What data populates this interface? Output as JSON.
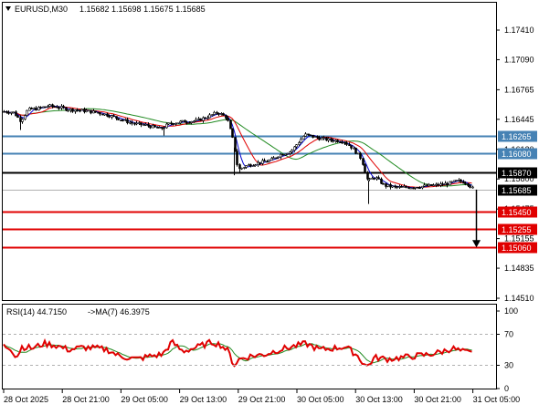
{
  "header": {
    "symbol_label": "EURUSD,M30",
    "ohlc": "1.15682 1.15698 1.15675 1.15685"
  },
  "price_axis": {
    "ticks": [
      "1.17410",
      "1.17090",
      "1.16765",
      "1.16445",
      "1.16120",
      "1.15800",
      "1.15475",
      "1.15155",
      "1.14835",
      "1.14510"
    ]
  },
  "levels": [
    {
      "label": "1.16265",
      "kind": "resistance",
      "color": "#4682B4"
    },
    {
      "label": "1.16080",
      "kind": "resistance",
      "color": "#4682B4"
    },
    {
      "label": "1.15870",
      "kind": "pivot",
      "color": "#000000"
    },
    {
      "label": "1.15450",
      "kind": "support",
      "color": "#E00000"
    },
    {
      "label": "1.15255",
      "kind": "support",
      "color": "#E00000"
    },
    {
      "label": "1.15060",
      "kind": "support",
      "color": "#E00000"
    }
  ],
  "current_price": {
    "label": "1.15685",
    "color": "#000000"
  },
  "rsi": {
    "label": "RSI(14) 44.7150",
    "ma_label": "->MA(7) 46.3975",
    "ticks": [
      "100",
      "70",
      "30",
      "0"
    ],
    "rsi_color": "#E00000",
    "ma_color": "#228B22"
  },
  "time_axis": {
    "labels": [
      "28 Oct 2025",
      "28 Oct 21:00",
      "29 Oct 05:00",
      "29 Oct 13:00",
      "29 Oct 21:00",
      "30 Oct 05:00",
      "30 Oct 13:00",
      "30 Oct 21:00",
      "31 Oct 05:00"
    ]
  },
  "colors": {
    "candle": "#000000",
    "ma_fast": "#0000CD",
    "ma_mid": "#E00000",
    "ma_slow": "#228B22",
    "arrow": "#000000"
  },
  "chart_data": {
    "type": "line",
    "symbol": "EURUSD",
    "timeframe": "M30",
    "x": [
      "28 Oct 2025",
      "28 Oct 21:00",
      "29 Oct 05:00",
      "29 Oct 13:00",
      "29 Oct 21:00",
      "30 Oct 05:00",
      "30 Oct 13:00",
      "30 Oct 21:00",
      "31 Oct 05:00"
    ],
    "series": [
      {
        "name": "EURUSD,M30",
        "values": [
          1.166,
          1.1655,
          1.1638,
          1.166,
          1.1582,
          1.1625,
          1.1574,
          1.1572,
          1.1568
        ]
      }
    ],
    "ylim": [
      1.1443,
      1.1756
    ],
    "levels": [
      1.16265,
      1.1608,
      1.1587,
      1.1545,
      1.15255,
      1.1506
    ],
    "rsi_range": [
      0,
      100
    ],
    "rsi_levels": [
      70,
      30
    ],
    "rsi_last": 44.715,
    "rsi_ma_last": 46.3975
  }
}
